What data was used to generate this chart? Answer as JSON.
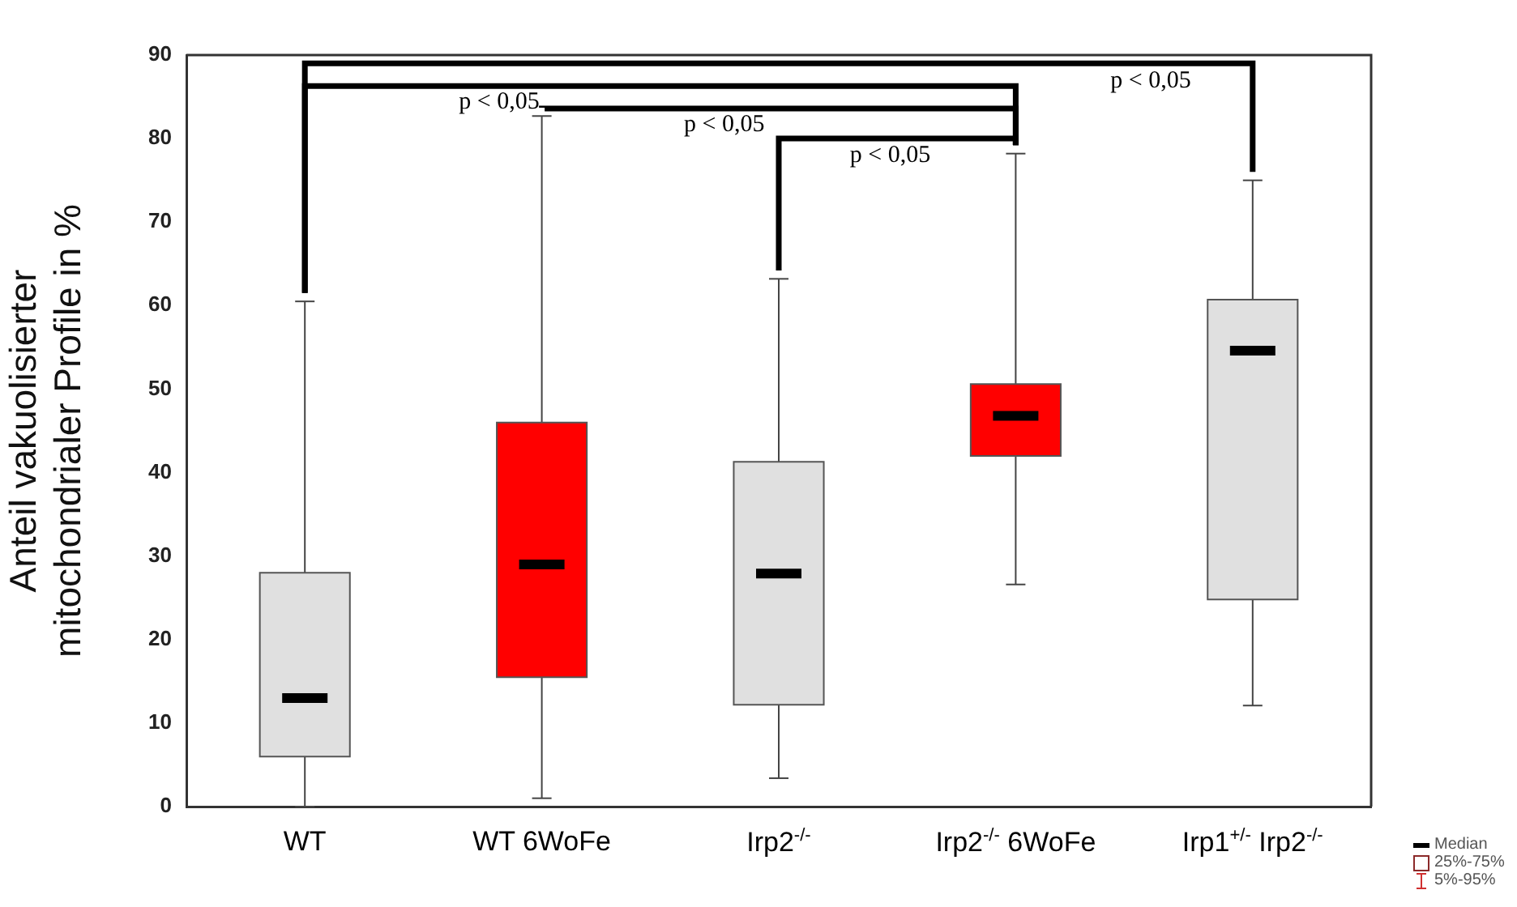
{
  "chart_data": {
    "type": "box",
    "ylabel": "Anteil vakuolisierter mitochondrialer Profile in %",
    "categories": [
      "WT",
      "WT 6WoFe",
      "Irp2$^{-/-}$",
      "Irp2$^{-/-}$ 6WoFe",
      "Irp1$^{+/-}$ Irp2$^{-/-}$"
    ],
    "colors": [
      "#e0e0e0",
      "#ff0000",
      "#e0e0e0",
      "#ff0000",
      "#e0e0e0"
    ],
    "boxes": [
      {
        "low": 0,
        "q1": 6,
        "median": 13,
        "q3": 28,
        "high": 60.5
      },
      {
        "low": 1,
        "q1": 15.5,
        "median": 29,
        "q3": 46,
        "high": 82.7
      },
      {
        "low": 3.4,
        "q1": 12.2,
        "median": 27.9,
        "q3": 41.3,
        "high": 63.2
      },
      {
        "low": 26.6,
        "q1": 42,
        "median": 46.8,
        "q3": 50.6,
        "high": 78.2
      },
      {
        "low": 12.1,
        "q1": 24.8,
        "median": 54.6,
        "q3": 60.7,
        "high": 75
      }
    ],
    "ylim": [
      0,
      90
    ],
    "yticks": [
      0,
      10,
      20,
      30,
      40,
      50,
      60,
      70,
      80,
      90
    ],
    "grid": false,
    "legend": false,
    "annotations": [
      "p < 0,05",
      "p < 0,05",
      "p < 0,05",
      "p < 0,05",
      "Median",
      "25%-75%",
      "5%-95%"
    ]
  }
}
